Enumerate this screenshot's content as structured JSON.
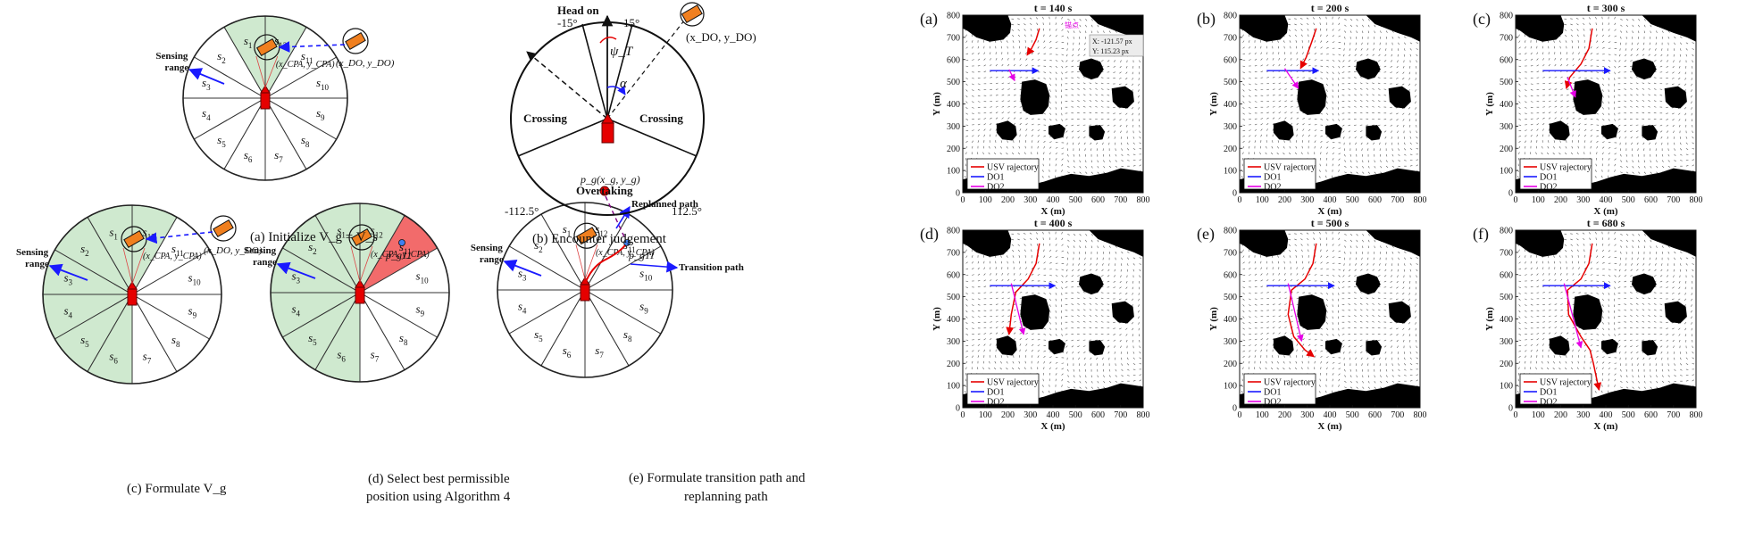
{
  "panels": {
    "a": {
      "caption": "(a) Initialize V_g = V_s",
      "sensing_label_1": "Sensing",
      "sensing_label_2": "range",
      "obstacle_label": "(x_DO, y_DO)",
      "cpa_label": "(x_CPA, y_CPA)"
    },
    "b": {
      "caption": "(b) Encounter judgement",
      "head_on": "Head on",
      "crossing_left": "Crossing",
      "crossing_right": "Crossing",
      "overtaking": "Overtaking",
      "angle_left": "-15°",
      "angle_right": "15°",
      "angle_bl": "-112.5°",
      "angle_br": "112.5°",
      "psi": "ψ_T",
      "alpha": "α",
      "obstacle_label": "(x_DO, y_DO)"
    },
    "c": {
      "caption": "(c) Formulate V_g",
      "sensing_label_1": "Sensing",
      "sensing_label_2": "range",
      "obstacle_label": "(x_DO, y_DO)",
      "cpa_label": "(x_CPA, y_CPA)"
    },
    "d": {
      "caption_1": "(d) Select best permissible",
      "caption_2": "position using Algorithm 4",
      "sensing_label_1": "Sensing",
      "sensing_label_2": "range",
      "pg_label": "p_g11",
      "cpa_label": "(x_CPA, y_CPA)"
    },
    "e": {
      "caption_1": "(e) Formulate transition path and",
      "caption_2": "replanning path",
      "sensing_label_1": "Sensing",
      "sensing_label_2": "range",
      "goal_label": "p_g(x_g, y_g)",
      "replanned": "Replanned path",
      "transition": "Transition path",
      "pg_label": "p_g11",
      "cpa_label": "(x_CPA, y_CPA)"
    },
    "sectors": [
      "s1",
      "s2",
      "s3",
      "s4",
      "s5",
      "s6",
      "s7",
      "s8",
      "s9",
      "s10",
      "s11",
      "s12"
    ]
  },
  "colors": {
    "green": "#cfe9cf",
    "green_dark": "#9fd39f",
    "red_sector": "#f26b6b",
    "usv": "#e60000",
    "do1": "#1a1aff",
    "do2": "#e600e6",
    "obstacle": "#000000",
    "boat_orange": "#f07f1f"
  },
  "sim": {
    "titles": [
      "t = 140 s",
      "t = 200 s",
      "t = 300 s",
      "t = 400 s",
      "t = 500 s",
      "t = 680 s"
    ],
    "letters": [
      "(a)",
      "(b)",
      "(c)",
      "(d)",
      "(e)",
      "(f)"
    ],
    "xlabel": "X (m)",
    "ylabel": "Y (m)",
    "xticks": [
      "0",
      "100",
      "200",
      "300",
      "400",
      "500",
      "600",
      "700",
      "800"
    ],
    "yticks": [
      "0",
      "100",
      "200",
      "300",
      "400",
      "500",
      "600",
      "700",
      "800"
    ],
    "legend": [
      "USV rajectory",
      "DO1",
      "DO2"
    ],
    "tooltip_1": "X: -121.57 px",
    "tooltip_2": "Y: 115.23 px",
    "tooltip_tag": "锚点"
  },
  "chart_data": [
    {
      "type": "line",
      "title": "t = 140 s",
      "xlabel": "X (m)",
      "ylabel": "Y (m)",
      "xlim": [
        0,
        800
      ],
      "ylim": [
        0,
        800
      ],
      "series": [
        {
          "name": "USV rajectory",
          "x": [
            340,
            325,
            305,
            285
          ],
          "y": [
            740,
            690,
            650,
            620
          ]
        },
        {
          "name": "DO1",
          "x": [
            120,
            335
          ],
          "y": [
            550,
            550
          ]
        },
        {
          "name": "DO2",
          "x": [
            205,
            230
          ],
          "y": [
            555,
            505
          ]
        }
      ]
    },
    {
      "type": "line",
      "title": "t = 200 s",
      "xlabel": "X (m)",
      "ylabel": "Y (m)",
      "xlim": [
        0,
        800
      ],
      "ylim": [
        0,
        800
      ],
      "series": [
        {
          "name": "USV rajectory",
          "x": [
            340,
            320,
            295,
            270
          ],
          "y": [
            740,
            680,
            610,
            560
          ]
        },
        {
          "name": "DO1",
          "x": [
            120,
            350
          ],
          "y": [
            550,
            550
          ]
        },
        {
          "name": "DO2",
          "x": [
            200,
            260
          ],
          "y": [
            560,
            470
          ]
        }
      ]
    },
    {
      "type": "line",
      "title": "t = 300 s",
      "xlabel": "X (m)",
      "ylabel": "Y (m)",
      "xlim": [
        0,
        800
      ],
      "ylim": [
        0,
        800
      ],
      "series": [
        {
          "name": "USV rajectory",
          "x": [
            340,
            325,
            290,
            240,
            225
          ],
          "y": [
            740,
            650,
            580,
            520,
            470
          ]
        },
        {
          "name": "DO1",
          "x": [
            120,
            420
          ],
          "y": [
            550,
            550
          ]
        },
        {
          "name": "DO2",
          "x": [
            230,
            265
          ],
          "y": [
            520,
            430
          ]
        }
      ]
    },
    {
      "type": "line",
      "title": "t = 400 s",
      "xlabel": "X (m)",
      "ylabel": "Y (m)",
      "xlim": [
        0,
        800
      ],
      "ylim": [
        0,
        800
      ],
      "series": [
        {
          "name": "USV rajectory",
          "x": [
            340,
            325,
            290,
            235,
            215,
            205
          ],
          "y": [
            740,
            650,
            580,
            520,
            420,
            330
          ]
        },
        {
          "name": "DO1",
          "x": [
            120,
            410
          ],
          "y": [
            550,
            550
          ]
        },
        {
          "name": "DO2",
          "x": [
            215,
            270
          ],
          "y": [
            560,
            330
          ]
        }
      ]
    },
    {
      "type": "line",
      "title": "t = 500 s",
      "xlabel": "X (m)",
      "ylabel": "Y (m)",
      "xlim": [
        0,
        800
      ],
      "ylim": [
        0,
        800
      ],
      "series": [
        {
          "name": "USV rajectory",
          "x": [
            340,
            325,
            290,
            230,
            215,
            240,
            290,
            330
          ],
          "y": [
            740,
            650,
            580,
            530,
            420,
            320,
            260,
            230
          ]
        },
        {
          "name": "DO1",
          "x": [
            120,
            420
          ],
          "y": [
            550,
            550
          ]
        },
        {
          "name": "DO2",
          "x": [
            215,
            275
          ],
          "y": [
            560,
            300
          ]
        }
      ]
    },
    {
      "type": "line",
      "title": "t = 680 s",
      "xlabel": "X (m)",
      "ylabel": "Y (m)",
      "xlim": [
        0,
        800
      ],
      "ylim": [
        0,
        800
      ],
      "series": [
        {
          "name": "USV rajectory",
          "x": [
            340,
            325,
            290,
            230,
            235,
            290,
            330,
            345,
            370
          ],
          "y": [
            740,
            650,
            580,
            530,
            420,
            320,
            260,
            200,
            80
          ]
        },
        {
          "name": "DO1",
          "x": [
            120,
            420
          ],
          "y": [
            550,
            550
          ]
        },
        {
          "name": "DO2",
          "x": [
            215,
            290
          ],
          "y": [
            560,
            270
          ]
        }
      ]
    }
  ]
}
